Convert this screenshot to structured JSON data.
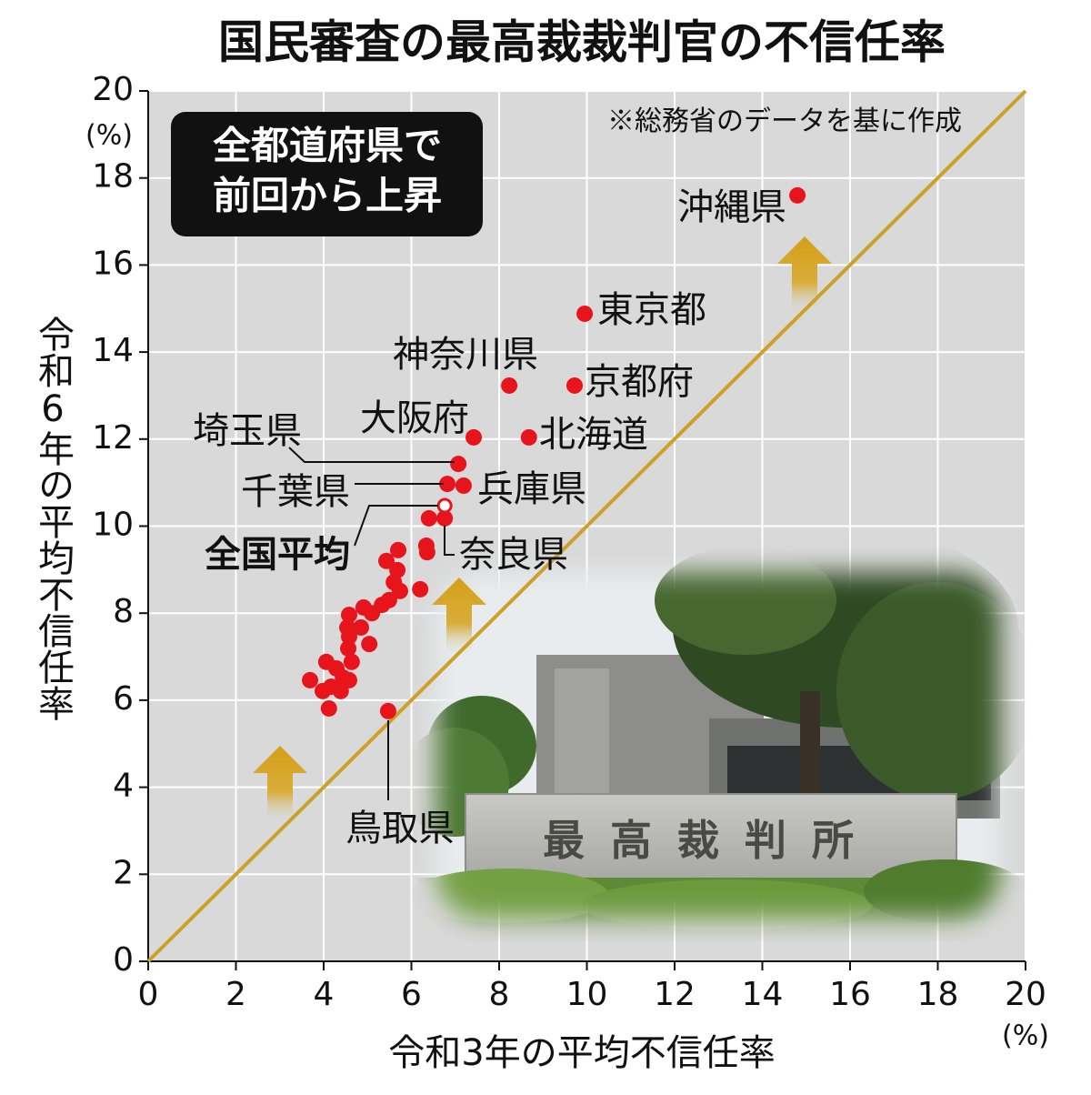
{
  "chart_data": {
    "type": "scatter",
    "title": "国民審査の最高裁裁判官の不信任率",
    "note": "※総務省のデータを基に作成",
    "badge": [
      "全都道府県で",
      "前回から上昇"
    ],
    "x_label": "令和3年の平均不信任率",
    "y_label": "令和6年の平均不信任率",
    "x_unit": "(%)",
    "y_unit": "(%)",
    "photo_text": "最高裁判所",
    "xlim": [
      0,
      20
    ],
    "ylim": [
      0,
      20
    ],
    "xticks": [
      0,
      2,
      4,
      6,
      8,
      10,
      12,
      14,
      16,
      18,
      20
    ],
    "yticks": [
      0,
      2,
      4,
      6,
      8,
      10,
      12,
      14,
      16,
      18,
      20
    ],
    "grid": true,
    "diagonal_color": "#c9a227",
    "series": [
      {
        "color": "#e8141c",
        "marker": "filled",
        "x": [
          14.8,
          9.95,
          8.23,
          9.72,
          7.42,
          8.68,
          7.07,
          6.82,
          7.19,
          6.76,
          5.47,
          6.4,
          6.34,
          6.36,
          5.7,
          5.43,
          5.68,
          5.6,
          5.74,
          5.49,
          6.2,
          4.91,
          4.58,
          5.1,
          4.85,
          4.54,
          4.58,
          5.04,
          4.56,
          4.64,
          4.06,
          4.29,
          4.44,
          4.58,
          4.17,
          3.69,
          3.98,
          4.12,
          4.39,
          5.33
        ],
        "y": [
          17.6,
          14.88,
          13.23,
          13.23,
          12.04,
          12.04,
          11.43,
          10.97,
          10.93,
          10.18,
          5.75,
          10.18,
          9.55,
          9.4,
          9.45,
          9.2,
          8.99,
          8.71,
          8.51,
          8.3,
          8.55,
          8.13,
          7.96,
          8.0,
          7.67,
          7.67,
          7.46,
          7.29,
          7.19,
          6.88,
          6.88,
          6.73,
          6.52,
          6.46,
          6.31,
          6.46,
          6.21,
          5.81,
          6.21,
          8.19
        ],
        "labels": [
          "沖縄県",
          "東京都",
          "神奈川県",
          "京都府",
          "大阪府",
          "北海道",
          "埼玉県",
          "千葉県",
          "兵庫県",
          "奈良県",
          "鳥取県",
          null,
          null,
          null,
          null,
          null,
          null,
          null,
          null,
          null,
          null,
          null,
          null,
          null,
          null,
          null,
          null,
          null,
          null,
          null,
          null,
          null,
          null,
          null,
          null,
          null,
          null,
          null,
          null,
          null
        ]
      },
      {
        "color": "#e8141c",
        "marker": "hollow",
        "x": [
          6.76
        ],
        "y": [
          10.47
        ],
        "labels": [
          "全国平均"
        ]
      }
    ]
  }
}
